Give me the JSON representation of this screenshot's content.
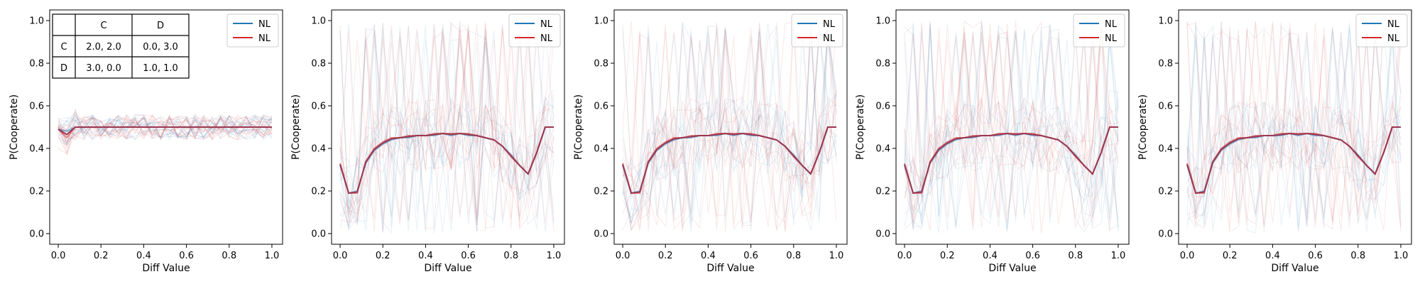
{
  "figure": {
    "background": "#ffffff"
  },
  "colors": {
    "blue": "#1f77b4",
    "red": "#d62728",
    "mean": "#9b3650"
  },
  "chart_data": [
    {
      "type": "line",
      "xlabel": "Diff Value",
      "ylabel": "P(Cooperate)",
      "xlim": [
        -0.04,
        1.05
      ],
      "ylim": [
        -0.05,
        1.05
      ],
      "xticks": [
        "0.0",
        "0.2",
        "0.4",
        "0.6",
        "0.8",
        "1.0"
      ],
      "yticks": [
        "0.0",
        "0.2",
        "0.4",
        "0.6",
        "0.8",
        "1.0"
      ],
      "legend": {
        "position": "top-right",
        "entries": [
          {
            "label": "NL",
            "color": "#1f77b4"
          },
          {
            "label": "NL",
            "color": "#d62728"
          }
        ]
      },
      "payoff_table": {
        "headers": [
          "",
          "C",
          "D"
        ],
        "rows": [
          [
            "C",
            "2.0, 2.0",
            "0.0, 3.0"
          ],
          [
            "D",
            "3.0, 0.0",
            "1.0, 1.0"
          ]
        ]
      },
      "x": [
        0.0,
        0.04,
        0.08,
        0.12,
        0.16,
        0.2,
        0.24,
        0.28,
        0.32,
        0.36,
        0.4,
        0.44,
        0.48,
        0.52,
        0.56,
        0.6,
        0.64,
        0.68,
        0.72,
        0.76,
        0.8,
        0.84,
        0.88,
        0.92,
        0.96,
        1.0
      ],
      "series": [
        {
          "values": [
            0.49,
            0.48,
            0.5,
            0.5,
            0.5,
            0.5,
            0.5,
            0.5,
            0.5,
            0.5,
            0.5,
            0.5,
            0.5,
            0.5,
            0.5,
            0.5,
            0.5,
            0.5,
            0.5,
            0.5,
            0.5,
            0.5,
            0.5,
            0.5,
            0.5,
            0.5
          ],
          "color": "#1f77b4"
        },
        {
          "values": [
            0.49,
            0.45,
            0.5,
            0.5,
            0.5,
            0.5,
            0.5,
            0.5,
            0.5,
            0.5,
            0.5,
            0.5,
            0.5,
            0.5,
            0.5,
            0.5,
            0.5,
            0.5,
            0.5,
            0.5,
            0.5,
            0.5,
            0.5,
            0.5,
            0.5,
            0.5
          ],
          "color": "#d62728"
        }
      ]
    },
    {
      "type": "line",
      "xlabel": "Diff Value",
      "ylabel": "P(Cooperate)",
      "xlim": [
        -0.04,
        1.05
      ],
      "ylim": [
        -0.05,
        1.05
      ],
      "xticks": [
        "0.0",
        "0.2",
        "0.4",
        "0.6",
        "0.8",
        "1.0"
      ],
      "yticks": [
        "0.0",
        "0.2",
        "0.4",
        "0.6",
        "0.8",
        "1.0"
      ],
      "legend": {
        "position": "top-right",
        "entries": [
          {
            "label": "NL",
            "color": "#1f77b4"
          },
          {
            "label": "NL",
            "color": "#d62728"
          }
        ]
      },
      "x": [
        0.0,
        0.04,
        0.08,
        0.12,
        0.16,
        0.2,
        0.24,
        0.28,
        0.32,
        0.36,
        0.4,
        0.44,
        0.48,
        0.52,
        0.56,
        0.6,
        0.64,
        0.68,
        0.72,
        0.76,
        0.8,
        0.84,
        0.88,
        0.92,
        0.96,
        1.0
      ],
      "series": [
        {
          "values": [
            0.32,
            0.19,
            0.2,
            0.33,
            0.39,
            0.42,
            0.44,
            0.45,
            0.45,
            0.46,
            0.46,
            0.46,
            0.47,
            0.46,
            0.47,
            0.46,
            0.46,
            0.45,
            0.44,
            0.41,
            0.37,
            0.32,
            0.28,
            0.38,
            0.5,
            0.5
          ],
          "color": "#1f77b4"
        },
        {
          "values": [
            0.33,
            0.19,
            0.19,
            0.34,
            0.4,
            0.43,
            0.45,
            0.45,
            0.46,
            0.46,
            0.46,
            0.47,
            0.47,
            0.47,
            0.47,
            0.47,
            0.46,
            0.45,
            0.44,
            0.41,
            0.36,
            0.32,
            0.28,
            0.38,
            0.5,
            0.5
          ],
          "color": "#d62728"
        }
      ]
    },
    {
      "type": "line",
      "xlabel": "Diff Value",
      "ylabel": "P(Cooperate)",
      "xlim": [
        -0.04,
        1.05
      ],
      "ylim": [
        -0.05,
        1.05
      ],
      "xticks": [
        "0.0",
        "0.2",
        "0.4",
        "0.6",
        "0.8",
        "1.0"
      ],
      "yticks": [
        "0.0",
        "0.2",
        "0.4",
        "0.6",
        "0.8",
        "1.0"
      ],
      "legend": {
        "position": "top-right",
        "entries": [
          {
            "label": "NL",
            "color": "#1f77b4"
          },
          {
            "label": "NL",
            "color": "#d62728"
          }
        ]
      },
      "x": [
        0.0,
        0.04,
        0.08,
        0.12,
        0.16,
        0.2,
        0.24,
        0.28,
        0.32,
        0.36,
        0.4,
        0.44,
        0.48,
        0.52,
        0.56,
        0.6,
        0.64,
        0.68,
        0.72,
        0.76,
        0.8,
        0.84,
        0.88,
        0.92,
        0.96,
        1.0
      ],
      "series": [
        {
          "values": [
            0.32,
            0.19,
            0.2,
            0.33,
            0.39,
            0.42,
            0.44,
            0.45,
            0.45,
            0.46,
            0.46,
            0.46,
            0.47,
            0.46,
            0.47,
            0.46,
            0.46,
            0.45,
            0.44,
            0.41,
            0.37,
            0.32,
            0.28,
            0.38,
            0.5,
            0.5
          ],
          "color": "#1f77b4"
        },
        {
          "values": [
            0.33,
            0.19,
            0.19,
            0.34,
            0.4,
            0.43,
            0.45,
            0.45,
            0.46,
            0.46,
            0.46,
            0.47,
            0.47,
            0.47,
            0.47,
            0.47,
            0.46,
            0.45,
            0.44,
            0.41,
            0.36,
            0.32,
            0.28,
            0.38,
            0.5,
            0.5
          ],
          "color": "#d62728"
        }
      ]
    },
    {
      "type": "line",
      "xlabel": "Diff Value",
      "ylabel": "P(Cooperate)",
      "xlim": [
        -0.04,
        1.05
      ],
      "ylim": [
        -0.05,
        1.05
      ],
      "xticks": [
        "0.0",
        "0.2",
        "0.4",
        "0.6",
        "0.8",
        "1.0"
      ],
      "yticks": [
        "0.0",
        "0.2",
        "0.4",
        "0.6",
        "0.8",
        "1.0"
      ],
      "legend": {
        "position": "top-right",
        "entries": [
          {
            "label": "NL",
            "color": "#1f77b4"
          },
          {
            "label": "NL",
            "color": "#d62728"
          }
        ]
      },
      "x": [
        0.0,
        0.04,
        0.08,
        0.12,
        0.16,
        0.2,
        0.24,
        0.28,
        0.32,
        0.36,
        0.4,
        0.44,
        0.48,
        0.52,
        0.56,
        0.6,
        0.64,
        0.68,
        0.72,
        0.76,
        0.8,
        0.84,
        0.88,
        0.92,
        0.96,
        1.0
      ],
      "series": [
        {
          "values": [
            0.32,
            0.19,
            0.2,
            0.33,
            0.39,
            0.42,
            0.44,
            0.45,
            0.45,
            0.46,
            0.46,
            0.46,
            0.47,
            0.46,
            0.47,
            0.46,
            0.46,
            0.45,
            0.44,
            0.41,
            0.37,
            0.32,
            0.28,
            0.38,
            0.5,
            0.5
          ],
          "color": "#1f77b4"
        },
        {
          "values": [
            0.33,
            0.19,
            0.19,
            0.34,
            0.4,
            0.43,
            0.45,
            0.45,
            0.46,
            0.46,
            0.46,
            0.47,
            0.47,
            0.47,
            0.47,
            0.47,
            0.46,
            0.45,
            0.44,
            0.41,
            0.36,
            0.32,
            0.28,
            0.38,
            0.5,
            0.5
          ],
          "color": "#d62728"
        }
      ]
    },
    {
      "type": "line",
      "xlabel": "Diff Value",
      "ylabel": "P(Cooperate)",
      "xlim": [
        -0.04,
        1.05
      ],
      "ylim": [
        -0.05,
        1.05
      ],
      "xticks": [
        "0.0",
        "0.2",
        "0.4",
        "0.6",
        "0.8",
        "1.0"
      ],
      "yticks": [
        "0.0",
        "0.2",
        "0.4",
        "0.6",
        "0.8",
        "1.0"
      ],
      "legend": {
        "position": "top-right",
        "entries": [
          {
            "label": "NL",
            "color": "#1f77b4"
          },
          {
            "label": "NL",
            "color": "#d62728"
          }
        ]
      },
      "x": [
        0.0,
        0.04,
        0.08,
        0.12,
        0.16,
        0.2,
        0.24,
        0.28,
        0.32,
        0.36,
        0.4,
        0.44,
        0.48,
        0.52,
        0.56,
        0.6,
        0.64,
        0.68,
        0.72,
        0.76,
        0.8,
        0.84,
        0.88,
        0.92,
        0.96,
        1.0
      ],
      "series": [
        {
          "values": [
            0.32,
            0.19,
            0.2,
            0.33,
            0.39,
            0.42,
            0.44,
            0.45,
            0.45,
            0.46,
            0.46,
            0.46,
            0.47,
            0.46,
            0.47,
            0.46,
            0.46,
            0.45,
            0.44,
            0.41,
            0.37,
            0.32,
            0.28,
            0.38,
            0.5,
            0.5
          ],
          "color": "#1f77b4"
        },
        {
          "values": [
            0.33,
            0.19,
            0.19,
            0.34,
            0.4,
            0.43,
            0.45,
            0.45,
            0.46,
            0.46,
            0.46,
            0.47,
            0.47,
            0.47,
            0.47,
            0.47,
            0.46,
            0.45,
            0.44,
            0.41,
            0.36,
            0.32,
            0.28,
            0.38,
            0.5,
            0.5
          ],
          "color": "#d62728"
        }
      ]
    }
  ]
}
